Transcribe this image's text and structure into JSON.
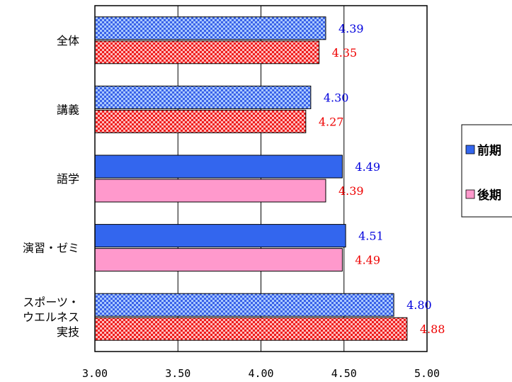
{
  "chart_data": {
    "type": "bar",
    "orientation": "horizontal",
    "categories": [
      [
        "全体"
      ],
      [
        "講義"
      ],
      [
        "語学"
      ],
      [
        "演習・ゼミ"
      ],
      [
        "スポーツ・",
        "ウエルネス",
        "実技"
      ]
    ],
    "series": [
      {
        "name": "前期",
        "values": [
          4.39,
          4.3,
          4.49,
          4.51,
          4.8
        ],
        "value_labels": [
          "4.39",
          "4.30",
          "4.49",
          "4.51",
          "4.80"
        ],
        "label_color": "#0000dd",
        "fill_solid": "#3366ee",
        "fill_pattern": [
          "checker",
          "checker",
          "solid",
          "solid",
          "checker"
        ]
      },
      {
        "name": "後期",
        "values": [
          4.35,
          4.27,
          4.39,
          4.49,
          4.88
        ],
        "value_labels": [
          "4.35",
          "4.27",
          "4.39",
          "4.49",
          "4.88"
        ],
        "label_color": "#ee0000",
        "fill_solid": "#ff99cc",
        "fill_pattern": [
          "checker",
          "checker",
          "solid",
          "solid",
          "checker"
        ]
      }
    ],
    "xlim": [
      3.0,
      5.0
    ],
    "xticks": [
      3.0,
      3.5,
      4.0,
      4.5,
      5.0
    ],
    "xtick_labels": [
      "3.00",
      "3.50",
      "4.00",
      "4.50",
      "5.00"
    ],
    "grid": "vertical",
    "legend_position": "right",
    "colors": {
      "checker_blue_a": "#3a62e8",
      "checker_blue_b": "#a8c8ff",
      "checker_red_a": "#ee1c1c",
      "checker_red_b": "#ffbbbb"
    }
  }
}
